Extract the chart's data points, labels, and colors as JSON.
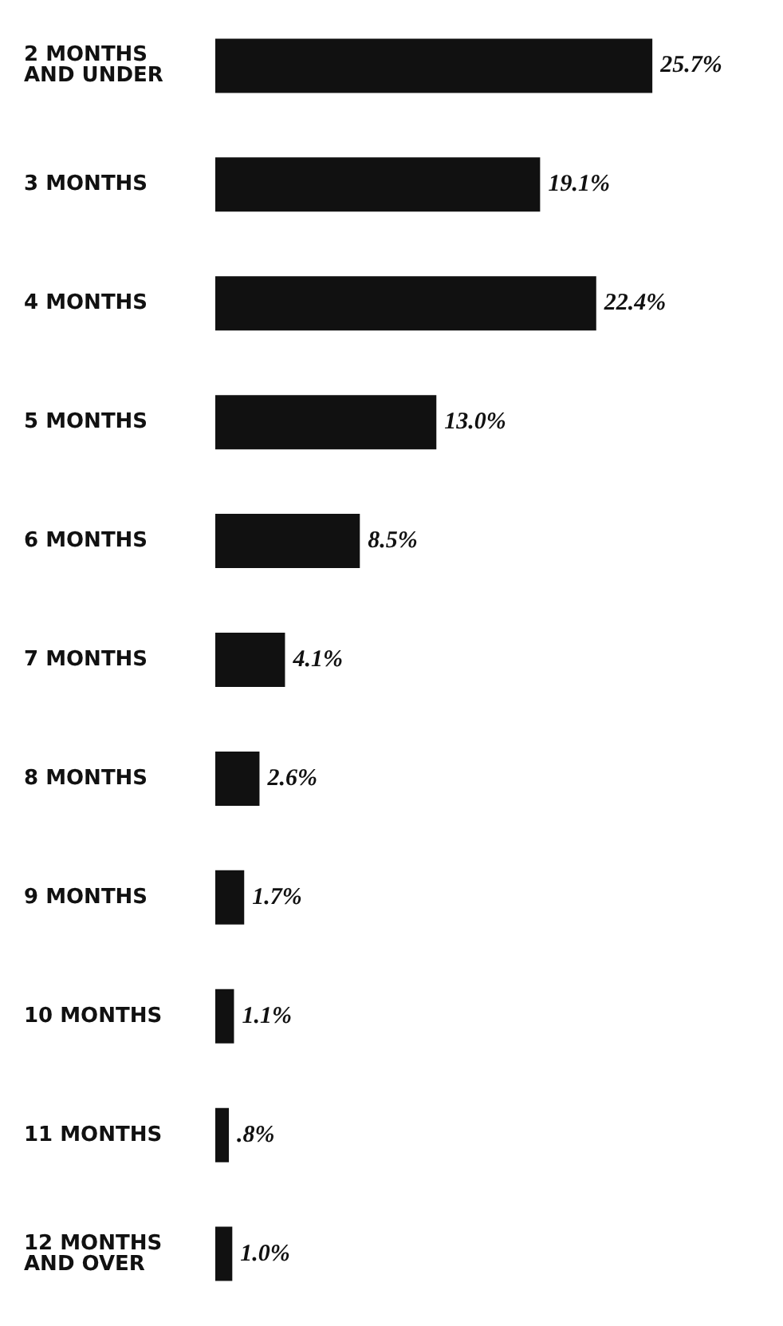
{
  "chart_data": {
    "type": "bar",
    "orientation": "horizontal",
    "categories": [
      "2 MONTHS AND UNDER",
      "3 MONTHS",
      "4 MONTHS",
      "5 MONTHS",
      "6 MONTHS",
      "7 MONTHS",
      "8 MONTHS",
      "9 MONTHS",
      "10 MONTHS",
      "11 MONTHS",
      "12 MONTHS AND OVER"
    ],
    "values": [
      25.7,
      19.1,
      22.4,
      13.0,
      8.5,
      4.1,
      2.6,
      1.7,
      1.1,
      0.8,
      1.0
    ],
    "value_labels": [
      "25.7%",
      "19.1%",
      "22.4%",
      "13.0%",
      "8.5%",
      "4.1%",
      "2.6%",
      "1.7%",
      "1.1%",
      ".8%",
      "1.0%"
    ],
    "color": "#111111"
  }
}
